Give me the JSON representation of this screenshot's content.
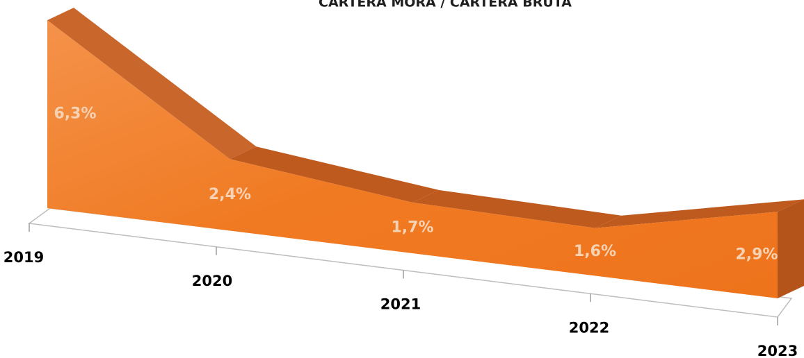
{
  "chart_data": {
    "type": "area3d",
    "title": "CARTERA MORA / CARTERA BRUTA",
    "categories": [
      "2019",
      "2020",
      "2021",
      "2022",
      "2023"
    ],
    "values": [
      6.3,
      2.4,
      1.7,
      1.6,
      2.9
    ],
    "value_labels": [
      "6,3%",
      "2,4%",
      "1,7%",
      "1,6%",
      "2,9%"
    ],
    "color": "#f07a22"
  }
}
